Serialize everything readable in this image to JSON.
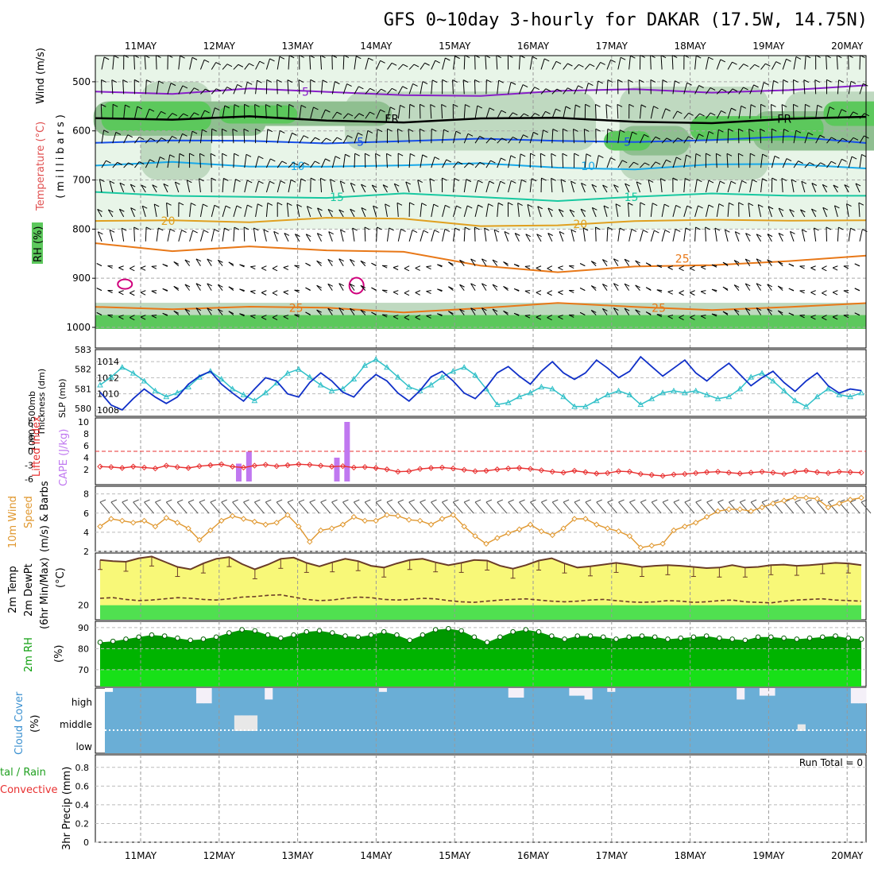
{
  "title": "GFS 0~10day 3-hourly for DAKAR (17.5W, 14.75N)",
  "dates": [
    "11MAY",
    "12MAY",
    "13MAY",
    "14MAY",
    "15MAY",
    "16MAY",
    "17MAY",
    "18MAY",
    "19MAY",
    "20MAY"
  ],
  "chart_data": [
    {
      "type": "heatmap",
      "panel": "upper-air",
      "ylabel": "(millibars)",
      "side_labels": [
        "Wind (m/s)",
        "Temperature (°C)",
        "RH (%)"
      ],
      "yticks": [
        500,
        600,
        700,
        800,
        900,
        1000
      ],
      "ylim": [
        1000,
        450
      ],
      "rh_levels": [
        30,
        50,
        70,
        90
      ],
      "contours": [
        {
          "label": "5",
          "p": [
            520,
            520,
            515,
            525,
            525,
            525,
            522,
            518,
            518,
            515,
            512
          ]
        },
        {
          "label": "FR",
          "p": [
            570,
            575,
            575,
            580,
            578,
            575,
            578,
            580,
            580,
            578,
            575
          ]
        },
        {
          "label": "5",
          "p": [
            620,
            622,
            624,
            622,
            618,
            620,
            622,
            618,
            618,
            616,
            624
          ]
        },
        {
          "label": "10",
          "p": [
            670,
            668,
            672,
            668,
            672,
            670,
            672,
            675,
            672,
            670,
            672
          ]
        },
        {
          "label": "15",
          "p": [
            728,
            735,
            730,
            735,
            732,
            735,
            738,
            735,
            732,
            730,
            728
          ]
        },
        {
          "label": "20",
          "p": [
            788,
            780,
            782,
            780,
            782,
            790,
            790,
            788,
            782,
            778,
            782
          ]
        },
        {
          "label": "25",
          "p": [
            830,
            840,
            835,
            848,
            845,
            870,
            890,
            880,
            870,
            862,
            858
          ]
        },
        {
          "label": "25",
          "p": [
            955,
            960,
            962,
            962,
            965,
            960,
            955,
            958,
            960,
            960,
            955
          ]
        }
      ]
    },
    {
      "type": "line",
      "panel": "thickness-slp",
      "series": [
        {
          "name": "1000-500mb Thickness (dm)",
          "color": "#30c0c8",
          "values": [
            581.2,
            581.6,
            582.1,
            581.8,
            581.4,
            580.9,
            580.6,
            580.8,
            581.1,
            581.6,
            581.9,
            581.5,
            581.0,
            580.7,
            580.4,
            580.8,
            581.3,
            581.8,
            582.0,
            581.6,
            581.2,
            580.9,
            581.0,
            581.5,
            582.2,
            582.5,
            582.1,
            581.6,
            581.1,
            580.9,
            581.2,
            581.6,
            581.9,
            582.1,
            581.7,
            581.0,
            580.2,
            580.3,
            580.6,
            580.8,
            581.1,
            581.0,
            580.6,
            580.1,
            580.1,
            580.4,
            580.7,
            580.9,
            580.7,
            580.2,
            580.5,
            580.8,
            580.9,
            580.8,
            580.9,
            580.7,
            580.5,
            580.6,
            581.0,
            581.6,
            581.8,
            581.4,
            580.9,
            580.4,
            580.1,
            580.6,
            581.0,
            580.7,
            580.6,
            580.8
          ]
        },
        {
          "name": "SLP (mb)",
          "color": "#1030c8",
          "values": [
            1010.2,
            1008.6,
            1008.0,
            1009.4,
            1010.6,
            1009.6,
            1008.8,
            1009.6,
            1011.2,
            1012.2,
            1012.8,
            1011.2,
            1010.1,
            1009.1,
            1010.6,
            1012.0,
            1011.6,
            1010.0,
            1009.6,
            1011.4,
            1012.6,
            1011.6,
            1010.2,
            1009.6,
            1011.2,
            1012.4,
            1011.6,
            1010.1,
            1009.1,
            1010.4,
            1012.1,
            1012.8,
            1011.6,
            1010.1,
            1009.4,
            1010.8,
            1012.6,
            1013.4,
            1012.2,
            1011.2,
            1012.8,
            1014.0,
            1012.6,
            1011.8,
            1012.6,
            1014.2,
            1013.2,
            1012.0,
            1012.8,
            1014.6,
            1013.4,
            1012.2,
            1013.2,
            1014.2,
            1012.6,
            1011.6,
            1012.8,
            1013.8,
            1012.4,
            1011.0,
            1012.0,
            1012.8,
            1011.4,
            1010.3,
            1011.6,
            1012.6,
            1011.0,
            1010.1,
            1010.6,
            1010.4
          ]
        }
      ],
      "ylabel_left": "1000~500mb Thickness (dm)",
      "ylabel_right": "SLP (mb)",
      "yticks_left": [
        580,
        581,
        582,
        583
      ],
      "yticks_right": [
        1008,
        1010,
        1012,
        1014
      ]
    },
    {
      "type": "bar",
      "panel": "cape-li",
      "ylabel": "CAPE (J/kg)",
      "ylabel2": "Lifted Index",
      "li_ticks": [
        "6",
        "3",
        "0",
        "-3",
        "-6"
      ],
      "cape_ticks": [
        "2",
        "4",
        "6",
        "8",
        "10"
      ],
      "cape_bars": [
        {
          "day": 1.25,
          "value": 3
        },
        {
          "day": 1.38,
          "value": 5
        },
        {
          "day": 2.5,
          "value": 4
        },
        {
          "day": 2.63,
          "value": 10
        }
      ],
      "lifted_index": [
        1.3,
        1.4,
        1.6,
        1.3,
        1.5,
        1.7,
        1.1,
        1.4,
        1.6,
        1.2,
        1.0,
        0.8,
        1.3,
        1.5,
        1.1,
        0.9,
        1.2,
        1.0,
        0.8,
        0.9,
        1.1,
        1.3,
        1.2,
        1.5,
        1.4,
        1.6,
        1.9,
        2.4,
        2.3,
        1.8,
        1.6,
        1.5,
        1.7,
        2.0,
        2.3,
        2.2,
        1.9,
        1.7,
        1.6,
        1.8,
        2.1,
        2.4,
        2.6,
        2.2,
        2.5,
        2.8,
        2.7,
        2.3,
        2.4,
        2.9,
        3.1,
        3.3,
        3.0,
        2.9,
        2.7,
        2.5,
        2.4,
        2.6,
        2.8,
        2.6,
        2.4,
        2.6,
        2.9,
        2.4,
        2.2,
        2.5,
        2.7,
        2.4,
        2.5,
        2.6
      ]
    },
    {
      "type": "line",
      "panel": "wind10m",
      "ylabel": "10m Wind Speed (m/s) & Barbs",
      "yticks": [
        2,
        4,
        6,
        8
      ],
      "values": [
        4.6,
        5.4,
        5.2,
        5.0,
        5.2,
        4.6,
        5.5,
        5.0,
        4.4,
        3.2,
        4.2,
        5.2,
        5.7,
        5.4,
        5.1,
        4.8,
        5.0,
        5.8,
        4.6,
        3.0,
        4.2,
        4.4,
        4.8,
        5.6,
        5.2,
        5.2,
        5.8,
        5.7,
        5.3,
        5.2,
        4.8,
        5.4,
        5.8,
        4.6,
        3.6,
        2.8,
        3.4,
        3.9,
        4.3,
        4.8,
        4.1,
        3.7,
        4.4,
        5.4,
        5.4,
        4.8,
        4.4,
        4.1,
        3.6,
        2.4,
        2.6,
        2.8,
        4.2,
        4.6,
        5.0,
        5.6,
        6.2,
        6.4,
        6.4,
        6.2,
        6.6,
        7.0,
        7.3,
        7.6,
        7.6,
        7.5,
        6.6,
        7.0,
        7.4,
        7.6
      ]
    },
    {
      "type": "area",
      "panel": "temp-dew",
      "ylabel": "2m Temp 2m DewPt (6hr Min/Max) (°C)",
      "ytick": "20",
      "temp": [
        27.8,
        27.6,
        27.5,
        28.1,
        28.4,
        27.5,
        26.6,
        26.2,
        27.2,
        28.0,
        28.3,
        27.1,
        26.2,
        27.0,
        28.0,
        28.2,
        27.3,
        26.7,
        27.4,
        28.0,
        27.6,
        26.8,
        26.5,
        27.2,
        27.8,
        28.0,
        27.4,
        26.9,
        27.3,
        27.8,
        27.7,
        26.8,
        26.3,
        26.9,
        27.7,
        28.1,
        27.2,
        26.5,
        26.7,
        27.0,
        27.3,
        27.0,
        26.6,
        26.8,
        26.9,
        26.8,
        26.6,
        26.4,
        26.5,
        26.9,
        26.5,
        26.6,
        26.9,
        27.0,
        26.8,
        26.9,
        27.1,
        27.3,
        27.2,
        26.9
      ],
      "dewpt": [
        21.2,
        21.3,
        21.0,
        20.8,
        20.9,
        21.1,
        21.3,
        21.2,
        21.0,
        20.9,
        21.1,
        21.4,
        21.5,
        21.7,
        21.8,
        21.4,
        21.0,
        20.8,
        20.9,
        21.2,
        21.4,
        21.3,
        21.0,
        20.9,
        21.0,
        21.2,
        21.1,
        20.8,
        20.6,
        20.5,
        20.7,
        20.9,
        21.0,
        21.1,
        20.9,
        20.7,
        20.6,
        20.7,
        20.9,
        21.0,
        20.8,
        20.6,
        20.5,
        20.6,
        20.8,
        20.7,
        20.5,
        20.6,
        20.8,
        20.9,
        20.6,
        20.5,
        20.4,
        20.7,
        20.9,
        21.0,
        21.1,
        20.9,
        20.8,
        20.7
      ],
      "ylim": [
        17.5,
        29
      ]
    },
    {
      "type": "area",
      "panel": "rh2m",
      "ylabel": "2m RH (%)",
      "yticks": [
        70,
        80,
        90
      ],
      "ylim": [
        62,
        93
      ],
      "values": [
        83.0,
        83.5,
        84.5,
        85.5,
        86.5,
        86.0,
        85.0,
        84.0,
        84.5,
        85.5,
        87.5,
        89.0,
        88.5,
        86.5,
        85.0,
        86.5,
        88.0,
        88.5,
        87.5,
        86.0,
        85.5,
        86.5,
        88.0,
        86.5,
        84.0,
        86.5,
        89.0,
        89.5,
        88.5,
        85.5,
        83.0,
        85.5,
        88.0,
        89.0,
        88.0,
        86.0,
        84.5,
        86.0,
        86.0,
        85.5,
        84.5,
        85.5,
        86.0,
        85.5,
        84.5,
        85.0,
        85.5,
        86.0,
        85.0,
        84.5,
        84.0,
        85.5,
        85.5,
        85.0,
        84.5,
        85.0,
        85.5,
        86.0,
        85.0,
        84.5
      ]
    },
    {
      "type": "bar",
      "panel": "cloud",
      "ylabel": "Cloud Cover (%)",
      "levels": [
        "high",
        "middle",
        "low"
      ],
      "high": [
        20,
        0,
        0,
        0,
        0,
        0,
        0,
        0,
        0,
        0,
        0,
        0,
        80,
        80,
        0,
        0,
        0,
        0,
        0,
        0,
        0,
        60,
        0,
        0,
        0,
        0,
        0,
        0,
        0,
        0,
        0,
        0,
        0,
        0,
        0,
        0,
        20,
        0,
        0,
        0,
        0,
        0,
        0,
        0,
        0,
        0,
        0,
        0,
        0,
        0,
        0,
        0,
        0,
        50,
        50,
        0,
        0,
        0,
        0,
        0,
        0,
        40,
        40,
        60,
        0,
        0,
        20,
        0,
        0,
        0,
        0,
        0,
        0,
        0,
        0,
        0,
        0,
        0,
        0,
        0,
        0,
        0,
        0,
        60,
        0,
        0,
        40,
        40,
        0,
        0,
        0,
        0,
        0,
        0,
        0,
        0,
        0,
        0,
        80,
        80
      ],
      "middle": [
        0,
        0,
        0,
        0,
        0,
        0,
        0,
        0,
        0,
        0,
        0,
        0,
        0,
        0,
        0,
        0,
        0,
        70,
        70,
        70,
        0,
        0,
        0,
        0,
        0,
        0,
        0,
        0,
        0,
        0,
        0,
        0,
        0,
        0,
        0,
        0,
        0,
        0,
        0,
        0,
        0,
        0,
        0,
        0,
        0,
        0,
        0,
        0,
        0,
        0,
        0,
        0,
        0,
        0,
        0,
        0,
        0,
        0,
        0,
        0,
        0,
        0,
        0,
        0,
        0,
        0,
        0,
        0,
        0,
        0,
        0,
        0,
        0,
        0,
        0,
        0,
        0,
        0,
        0,
        0,
        0,
        0,
        0,
        0,
        0,
        0,
        0,
        0,
        0,
        0,
        0,
        30,
        0,
        0,
        0,
        0,
        0,
        0,
        0,
        0
      ]
    },
    {
      "type": "line",
      "panel": "precip",
      "ylabel": "3hr Precip (mm)",
      "ylabel2": "Total / Rain",
      "ylabel3": "Convective",
      "yticks": [
        "0",
        "0.2",
        "0.4",
        "0.6",
        "0.8"
      ],
      "ylim": [
        0,
        0.9
      ],
      "run_total_label": "Run Total = 0",
      "values": []
    }
  ],
  "labels": {
    "wind": "Wind (m/s)",
    "temperature": "Temperature (°C)",
    "rh": "RH (%)",
    "millibars": "(millibars)",
    "thickness": "1000~500mb",
    "thickness2": "Thickness (dm)",
    "slp": "SLP (mb)",
    "lifted": "Lifted Index",
    "cape": "CAPE (J/kg)",
    "wind10_a": "10m Wind",
    "wind10_b": "Speed",
    "wind10_c": "(m/s) & Barbs",
    "temp_a": "2m Temp",
    "temp_b": "2m DewPt",
    "temp_c": "(6hr Min/Max)",
    "temp_d": "(°C)",
    "rh2m": "2m RH",
    "rh2m_unit": "(%)",
    "cloud": "Cloud Cover",
    "cloud_unit": "(%)",
    "precip_a": "tal / Rain",
    "precip_b": "Convective",
    "precip_c": "3hr Precip (mm)"
  },
  "colors": {
    "rh_light": "#e8f5e8",
    "rh_mid": "#bfd9c0",
    "rh_dark": "#8fbf90",
    "rh_green": "#5cc85c",
    "purple": "#8820c8",
    "black": "#000000",
    "blue": "#1850e8",
    "cyan": "#18a8e8",
    "teal": "#18c8a0",
    "gold": "#e0a020",
    "orange": "#e87818",
    "magenta": "#d0007c",
    "thickness": "#30c0c8",
    "slp": "#1030c8",
    "li": "#e83030",
    "cape": "#c078f0",
    "wind10": "#e09830",
    "temp_fill": "#f8f878",
    "temp_line": "#6a3c28",
    "dew_fill": "#50e050",
    "rh2m_dark": "#009800",
    "rh2m_mid": "#00b400",
    "rh2m_light": "#18e018",
    "cloud_blue": "#6aaed6",
    "cloud_white": "#ffffff",
    "cloud_grey": "#e0e0e0"
  }
}
